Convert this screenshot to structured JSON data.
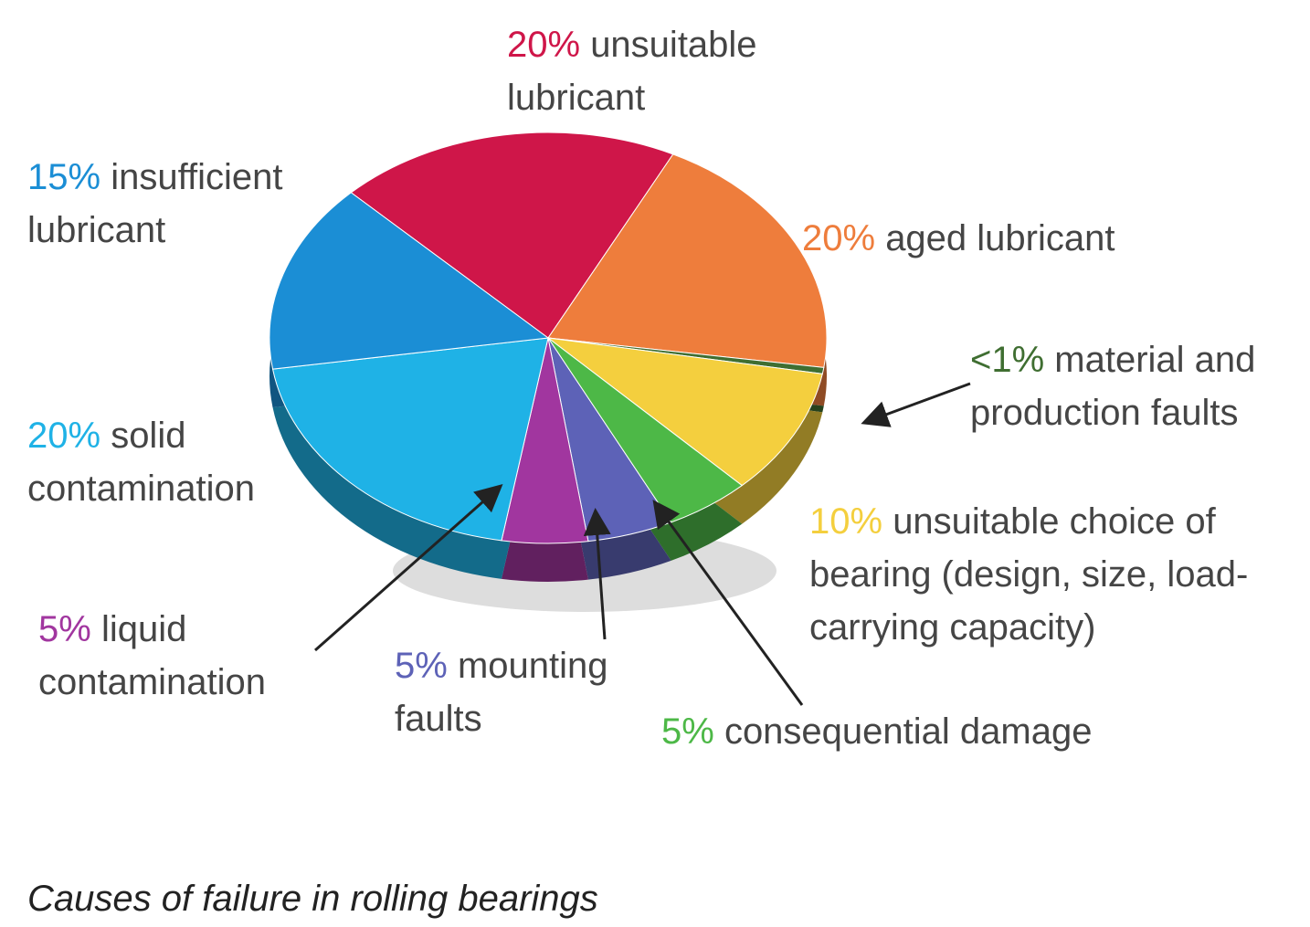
{
  "chart_data": {
    "type": "pie",
    "title": "Causes of failure in rolling bearings",
    "categories": [
      "unsuitable lubricant",
      "aged lubricant",
      "material and production faults",
      "unsuitable choice of bearing (design, size, load-carrying capacity)",
      "consequential damage",
      "mounting faults",
      "liquid contamination",
      "solid contamination",
      "insufficient lubricant"
    ],
    "values": [
      20,
      20,
      0.5,
      10,
      5,
      5,
      5,
      20,
      15
    ],
    "value_labels": [
      "20%",
      "20%",
      "<1%",
      "10%",
      "5%",
      "5%",
      "5%",
      "20%",
      "15%"
    ],
    "colors": [
      "#cf1649",
      "#ee7d3c",
      "#3f6e31",
      "#f4cf3e",
      "#4db847",
      "#5d62b7",
      "#a1369f",
      "#1fb2e6",
      "#1b8ed5"
    ]
  }
}
